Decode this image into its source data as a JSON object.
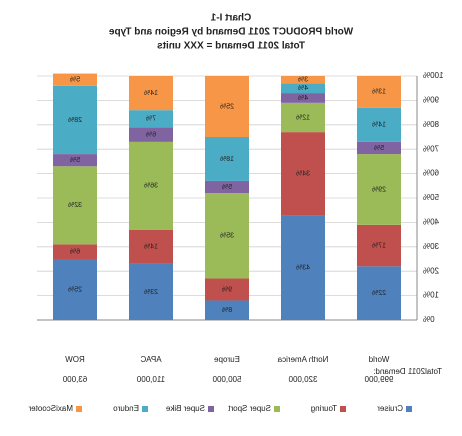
{
  "chart_data": {
    "type": "stacked_bar",
    "title": "Chart I-1",
    "subtitle": [
      "World PRODUCT 2011 Demand by Region and Type",
      "Total 2011 Demand = XXX units"
    ],
    "categories": [
      "World",
      "North America",
      "Europe",
      "APAC",
      "ROW"
    ],
    "series": [
      {
        "name": "Cruiser",
        "color": "#4f81bd",
        "values": [
          22,
          43,
          8,
          23,
          25
        ],
        "value_labels": [
          "22%",
          "43%",
          "8%",
          "23%",
          "25%"
        ]
      },
      {
        "name": "Touring",
        "color": "#c0504d",
        "values": [
          17,
          34,
          9,
          14,
          6
        ],
        "value_labels": [
          "17%",
          "34%",
          "9%",
          "14%",
          "6%"
        ]
      },
      {
        "name": "Super Sport",
        "color": "#9bbb59",
        "values": [
          29,
          12,
          35,
          36,
          32
        ],
        "value_labels": [
          "29%",
          "12%",
          "35%",
          "36%",
          "32%"
        ]
      },
      {
        "name": "Super Bike",
        "color": "#8064a2",
        "values": [
          5,
          4,
          5,
          6,
          5
        ],
        "value_labels": [
          "5%",
          "4%",
          "5%",
          "6%",
          "5%"
        ]
      },
      {
        "name": "Enduro",
        "color": "#4bacc6",
        "values": [
          14,
          4,
          18,
          7,
          28
        ],
        "value_labels": [
          "14%",
          "4%",
          "18%",
          "7%",
          "28%"
        ]
      },
      {
        "name": "MaxiScooter",
        "color": "#f79646",
        "values": [
          13,
          3,
          25,
          14,
          5
        ],
        "value_labels": [
          "13%",
          "3%",
          "25%",
          "14%",
          "5%"
        ]
      }
    ],
    "ylim": [
      0,
      100
    ],
    "yticks": [
      {
        "value": 0,
        "label": "0%"
      },
      {
        "value": 10,
        "label": "10%"
      },
      {
        "value": 20,
        "label": "20%"
      },
      {
        "value": 30,
        "label": "30%"
      },
      {
        "value": 40,
        "label": "40%"
      },
      {
        "value": 50,
        "label": "50%"
      },
      {
        "value": 60,
        "label": "60%"
      },
      {
        "value": 70,
        "label": "70%"
      },
      {
        "value": 80,
        "label": "80%"
      },
      {
        "value": 90,
        "label": "90%"
      },
      {
        "value": 100,
        "label": "100%"
      }
    ],
    "grid": true,
    "legend": "bottom",
    "demand": {
      "label": "Total2011 Demand:",
      "values": [
        999000,
        320000,
        500000,
        110000,
        63000
      ],
      "value_labels": [
        "999,000",
        "320,000",
        "500,000",
        "110,000",
        "63,000"
      ]
    }
  }
}
